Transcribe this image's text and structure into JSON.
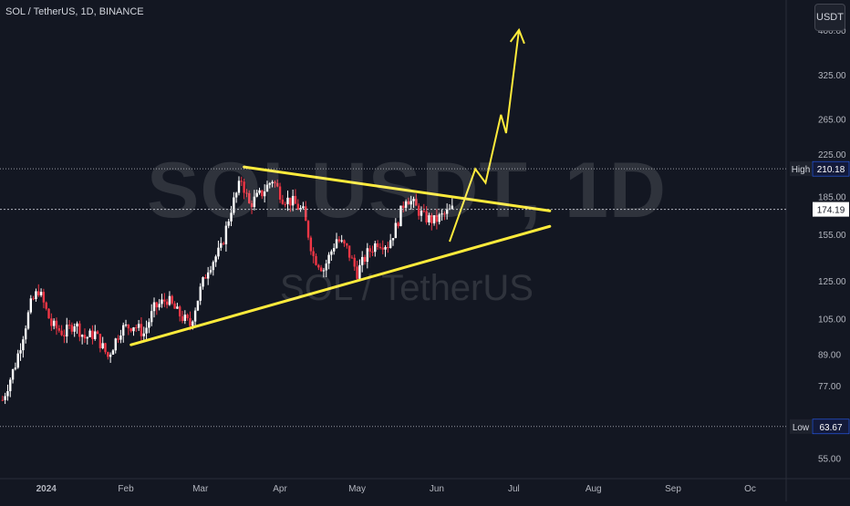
{
  "header": {
    "symbol_title": "SOL / TetherUS, 1D, BINANCE",
    "currency_label": "USDT"
  },
  "watermark": {
    "ticker": "SOLUSDT, 1D",
    "pair_name": "SOL / TetherUS"
  },
  "chart_data": {
    "type": "candlestick",
    "symbol": "SOL / TetherUS",
    "interval": "1D",
    "exchange": "BINANCE",
    "y_scale": "log",
    "ylim": [
      50,
      450
    ],
    "x_range": [
      "2023-12-14",
      "2024-10-15"
    ],
    "y_ticks": [
      400.0,
      325.0,
      265.0,
      225.0,
      185.0,
      155.0,
      125.0,
      105.0,
      89.0,
      77.0,
      55.0
    ],
    "y_tick_labels": [
      "400.00",
      "325.00",
      "265.00",
      "225.00",
      "185.00",
      "155.00",
      "125.00",
      "105.00",
      "89.00",
      "77.00",
      "55.00"
    ],
    "x_ticks": [
      {
        "date": "2024-01-01",
        "label": "2024"
      },
      {
        "date": "2024-02-01",
        "label": "Feb"
      },
      {
        "date": "2024-03-01",
        "label": "Mar"
      },
      {
        "date": "2024-04-01",
        "label": "Apr"
      },
      {
        "date": "2024-05-01",
        "label": "May"
      },
      {
        "date": "2024-06-01",
        "label": "Jun"
      },
      {
        "date": "2024-07-01",
        "label": "Jul"
      },
      {
        "date": "2024-08-01",
        "label": "Aug"
      },
      {
        "date": "2024-09-01",
        "label": "Sep"
      },
      {
        "date": "2024-10-01",
        "label": "Oc"
      }
    ],
    "high": {
      "label": "High",
      "value": 210.18,
      "text": "210.18"
    },
    "low": {
      "label": "Low",
      "value": 63.67,
      "text": "63.67"
    },
    "last_price": {
      "value": 174.19,
      "text": "174.19"
    },
    "colors": {
      "up": "#ffffff",
      "down": "#f23645",
      "trendline": "#ffeb3b",
      "axis_text": "#b2b5be",
      "background": "#131722"
    },
    "price_path": [
      [
        "2023-12-15",
        72
      ],
      [
        "2023-12-20",
        85
      ],
      [
        "2023-12-26",
        112
      ],
      [
        "2023-12-29",
        120
      ],
      [
        "2024-01-03",
        102
      ],
      [
        "2024-01-08",
        98
      ],
      [
        "2024-01-12",
        103
      ],
      [
        "2024-01-16",
        96
      ],
      [
        "2024-01-20",
        98
      ],
      [
        "2024-01-25",
        88
      ],
      [
        "2024-01-30",
        100
      ],
      [
        "2024-02-04",
        102
      ],
      [
        "2024-02-08",
        98
      ],
      [
        "2024-02-12",
        110
      ],
      [
        "2024-02-17",
        115
      ],
      [
        "2024-02-21",
        108
      ],
      [
        "2024-02-26",
        102
      ],
      [
        "2024-03-01",
        120
      ],
      [
        "2024-03-04",
        133
      ],
      [
        "2024-03-09",
        145
      ],
      [
        "2024-03-13",
        175
      ],
      [
        "2024-03-17",
        200
      ],
      [
        "2024-03-20",
        178
      ],
      [
        "2024-03-25",
        188
      ],
      [
        "2024-03-29",
        200
      ],
      [
        "2024-04-02",
        184
      ],
      [
        "2024-04-06",
        180
      ],
      [
        "2024-04-10",
        172
      ],
      [
        "2024-04-14",
        140
      ],
      [
        "2024-04-18",
        132
      ],
      [
        "2024-04-23",
        152
      ],
      [
        "2024-04-27",
        145
      ],
      [
        "2024-05-01",
        130
      ],
      [
        "2024-05-05",
        142
      ],
      [
        "2024-05-09",
        150
      ],
      [
        "2024-05-13",
        148
      ],
      [
        "2024-05-16",
        160
      ],
      [
        "2024-05-20",
        185
      ],
      [
        "2024-05-23",
        178
      ],
      [
        "2024-05-27",
        168
      ],
      [
        "2024-05-31",
        165
      ],
      [
        "2024-06-04",
        170
      ],
      [
        "2024-06-07",
        174.19
      ]
    ],
    "annotations": [
      {
        "type": "trendline",
        "name": "upper",
        "from": [
          "2024-03-18",
          212
        ],
        "to": [
          "2024-07-15",
          173
        ]
      },
      {
        "type": "trendline",
        "name": "lower",
        "from": [
          "2024-02-03",
          93
        ],
        "to": [
          "2024-07-15",
          161
        ]
      },
      {
        "type": "arrow",
        "name": "projection",
        "points": [
          [
            "2024-06-06",
            150
          ],
          [
            "2024-06-16",
            210
          ],
          [
            "2024-06-20",
            197
          ],
          [
            "2024-06-26",
            270
          ],
          [
            "2024-06-28",
            248
          ],
          [
            "2024-07-03",
            400
          ]
        ]
      }
    ]
  }
}
